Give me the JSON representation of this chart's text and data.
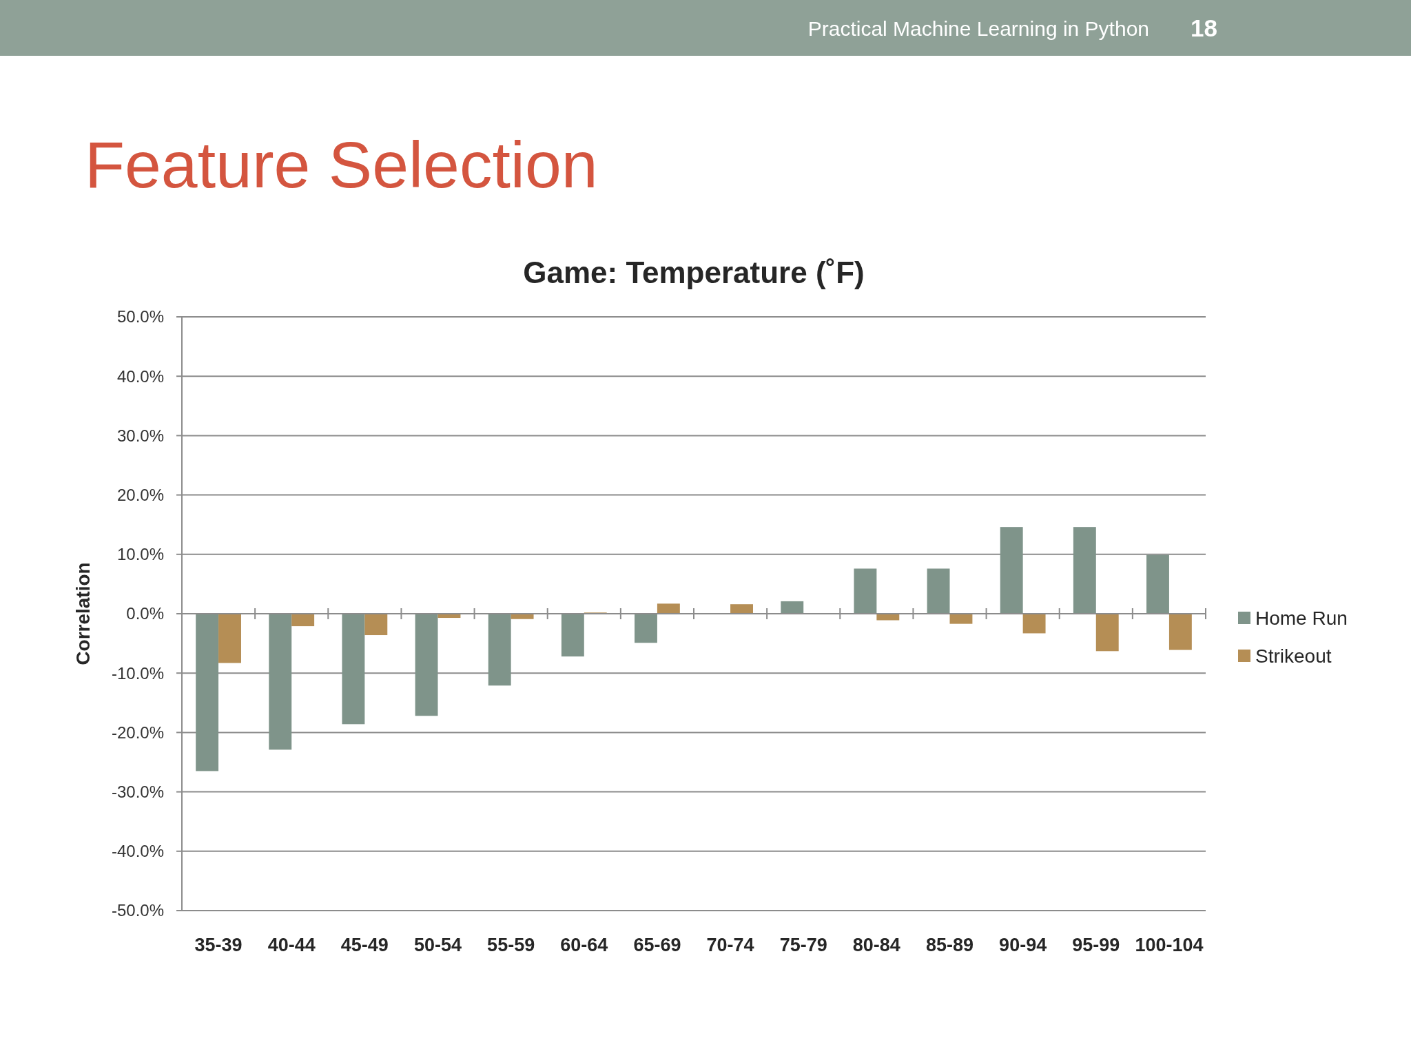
{
  "chart_data": {
    "type": "bar",
    "title": "Feature Selection",
    "subtitle": "Game: Temperature (˚F)",
    "annotations": [
      "Practical Machine Learning in Python",
      "18"
    ],
    "ylabel": "Correlation",
    "categories": [
      "35-39",
      "40-44",
      "45-49",
      "50-54",
      "55-59",
      "60-64",
      "65-69",
      "70-74",
      "75-79",
      "80-84",
      "85-89",
      "90-94",
      "95-99",
      "100-104"
    ],
    "series": [
      {
        "name": "Home Run",
        "color": "#7f948a",
        "values": [
          -26.5,
          -22.9,
          -18.6,
          -17.2,
          -12.1,
          -7.2,
          -4.9,
          0,
          2.1,
          7.6,
          7.6,
          14.6,
          14.6,
          9.9
        ]
      },
      {
        "name": "Strikeout",
        "color": "#b58e55",
        "values": [
          -8.3,
          -2.1,
          -3.6,
          -0.7,
          -0.9,
          0.2,
          1.7,
          1.6,
          0,
          -1.1,
          -1.7,
          -3.3,
          -6.3,
          -6.1
        ]
      }
    ],
    "ylim": [
      -50,
      50
    ],
    "yticks": [
      {
        "value": -50,
        "label": "-50.0%"
      },
      {
        "value": -40,
        "label": "-40.0%"
      },
      {
        "value": -30,
        "label": "-30.0%"
      },
      {
        "value": -20,
        "label": "-20.0%"
      },
      {
        "value": -10,
        "label": "-10.0%"
      },
      {
        "value": 0,
        "label": "0.0%"
      },
      {
        "value": 10,
        "label": "10.0%"
      },
      {
        "value": 20,
        "label": "20.0%"
      },
      {
        "value": 30,
        "label": "30.0%"
      },
      {
        "value": 40,
        "label": "40.0%"
      },
      {
        "value": 50,
        "label": "50.0%"
      }
    ],
    "grid": "y",
    "legend": "right"
  }
}
